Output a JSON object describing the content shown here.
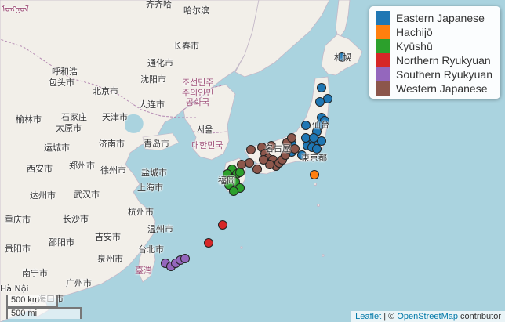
{
  "legend": {
    "items": [
      {
        "label": "Eastern Japanese",
        "color": "#1f77b4"
      },
      {
        "label": "Hachijō",
        "color": "#ff7f0e"
      },
      {
        "label": "Kyūshū",
        "color": "#2ca02c"
      },
      {
        "label": "Northern Ryukyuan",
        "color": "#d62728"
      },
      {
        "label": "Southern Ryukyuan",
        "color": "#9467bd"
      },
      {
        "label": "Western Japanese",
        "color": "#8c564b"
      }
    ]
  },
  "labels": {
    "cities": {
      "qiqihar": "齐齐哈",
      "harbin": "哈尔滨",
      "changchun": "长春市",
      "tonghua": "通化市",
      "shenyang": "沈阳市",
      "hohhot": "呼和浩",
      "baotou": "包头市",
      "yulin": "榆林市",
      "beijing": "北京市",
      "tianjin": "天津市",
      "shijiazhuang": "石家庄",
      "taiyuan": "太原市",
      "dalian": "大连市",
      "qingdao": "青岛市",
      "jinan": "济南市",
      "yuncheng": "运城市",
      "xian": "西安市",
      "zhengzhou": "郑州市",
      "xuzhou": "徐州市",
      "yancheng": "盐城市",
      "dazhou": "达州市",
      "wuhan": "武汉市",
      "shanghai": "上海市",
      "chongqing": "重庆市",
      "changsha": "长沙市",
      "hangzhou": "杭州市",
      "wenzhou": "温州市",
      "guiyang": "贵阳市",
      "shaoyang": "邵阳市",
      "jian": "吉安市",
      "quanzhou": "泉州市",
      "nanning": "南宁市",
      "guangzhou": "广州市",
      "haikou": "海口市",
      "hanoi": "Hà Nội",
      "taipei": "台北市",
      "tokyo": "東京都",
      "sapporo": "札幌",
      "sendai": "仙台",
      "nagoya": "名古屋",
      "fukuoka": "福岡",
      "seoul": "서울"
    },
    "countries": {
      "north_korea": "조선민주\n주의인민\n공화국",
      "south_korea": "대한민국",
      "taiwan": "臺灣",
      "mongolia": "ᠮᠣᠩᠭᠣᠯ"
    }
  },
  "scale": {
    "km": "500 km",
    "mi": "500 mi"
  },
  "attribution": {
    "leaflet": "Leaflet",
    "separator": " | © ",
    "osm": "OpenStreetMap",
    "suffix": " contributor"
  }
}
